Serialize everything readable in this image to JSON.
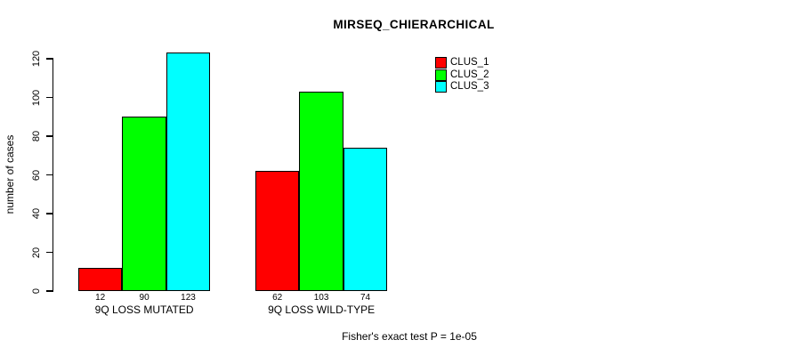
{
  "chart_data": {
    "type": "bar",
    "title": "MIRSEQ_CHIERARCHICAL",
    "xlabel": "",
    "ylabel": "number of cases",
    "categories": [
      "9Q LOSS MUTATED",
      "9Q LOSS WILD-TYPE"
    ],
    "series": [
      {
        "name": "CLUS_1",
        "color": "#ff0000",
        "values": [
          12,
          62
        ]
      },
      {
        "name": "CLUS_2",
        "color": "#00ff00",
        "values": [
          90,
          103
        ]
      },
      {
        "name": "CLUS_3",
        "color": "#00ffff",
        "values": [
          123,
          74
        ]
      }
    ],
    "bar_value_labels": {
      "9Q LOSS MUTATED": [
        "12",
        "90",
        "123"
      ],
      "9Q LOSS WILD-TYPE": [
        "62",
        "103",
        "74"
      ]
    },
    "y_ticks": [
      0,
      20,
      40,
      60,
      80,
      100,
      120
    ],
    "ylim": [
      0,
      130
    ],
    "grid": false,
    "legend_position": "top-right",
    "legend_entries": [
      "CLUS_1",
      "CLUS_2",
      "CLUS_3"
    ],
    "annotation": "Fisher's exact test P = 1e-05",
    "colors": {
      "bar_border": "#000000",
      "axis": "#000000",
      "text": "#000000",
      "background": "#ffffff"
    }
  }
}
